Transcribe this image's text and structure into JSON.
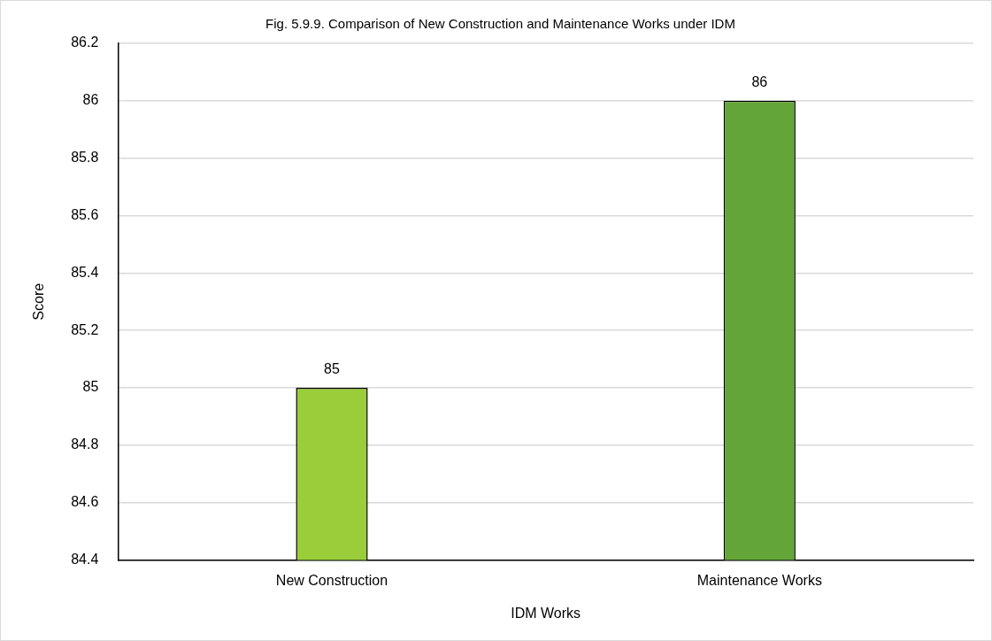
{
  "chart_data": {
    "type": "bar",
    "title": "Fig. 5.9.9. Comparison of New Construction and Maintenance Works under IDM",
    "xlabel": "IDM Works",
    "ylabel": "Score",
    "categories": [
      "New Construction",
      "Maintenance Works"
    ],
    "values": [
      85,
      86
    ],
    "colors": [
      "#9acd3a",
      "#63a538"
    ],
    "ylim": [
      84.4,
      86.2
    ],
    "yticks": [
      84.4,
      84.6,
      84.8,
      85,
      85.2,
      85.4,
      85.6,
      85.8,
      86,
      86.2
    ],
    "grid": "y",
    "data_labels": true,
    "legend": false
  }
}
